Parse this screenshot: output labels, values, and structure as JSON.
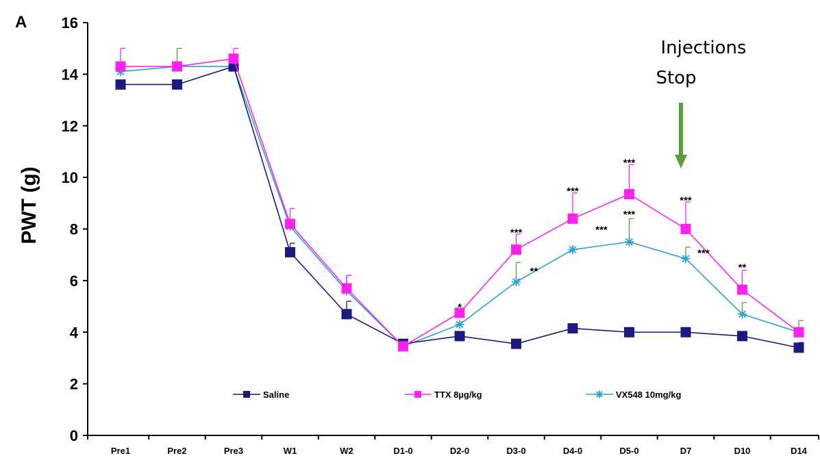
{
  "panel_label": "A",
  "annotation": {
    "text_line1": "Injections",
    "text_line2": "Stop",
    "arrow_color": "#5a9e3a",
    "at_category": "D7"
  },
  "chart_data": {
    "type": "line",
    "title": "",
    "xlabel": "",
    "ylabel": "PWT (g)",
    "ylim": [
      0,
      16
    ],
    "yticks": [
      0,
      2,
      4,
      6,
      8,
      10,
      12,
      14,
      16
    ],
    "grid": false,
    "legend_position": "bottom",
    "categories": [
      "Pre1",
      "Pre2",
      "Pre3",
      "W1",
      "W2",
      "D1-0",
      "D2-0",
      "D3-0",
      "D4-0",
      "D5-0",
      "D7",
      "D10",
      "D14"
    ],
    "series": [
      {
        "name": "Saline",
        "color": "#1a1a80",
        "marker": "square",
        "values": [
          13.6,
          13.6,
          14.3,
          7.1,
          4.7,
          3.55,
          3.85,
          3.55,
          4.15,
          4.0,
          4.0,
          3.85,
          3.4
        ],
        "errors": [
          0,
          0,
          0,
          0.35,
          0.5,
          0,
          0,
          0,
          0,
          0,
          0,
          0.15,
          0.2
        ]
      },
      {
        "name": "TTX 8µg/kg",
        "color": "#ff22ee",
        "marker": "square",
        "values": [
          14.3,
          14.3,
          14.6,
          8.2,
          5.7,
          3.45,
          4.75,
          7.2,
          8.4,
          9.35,
          8.0,
          5.65,
          4.0
        ],
        "errors": [
          0.7,
          0,
          0.4,
          0.6,
          0.5,
          0,
          0.15,
          0.6,
          1.0,
          1.15,
          1.05,
          0.75,
          0.1
        ]
      },
      {
        "name": "VX548 10mg/kg",
        "color": "#2aa3cc",
        "marker": "asterisk",
        "values": [
          14.1,
          14.3,
          14.3,
          8.1,
          5.6,
          3.45,
          4.3,
          5.95,
          7.2,
          7.5,
          6.85,
          4.7,
          4.0
        ],
        "errors": [
          0,
          0.7,
          0,
          0,
          0.6,
          0,
          0,
          0.75,
          0,
          0.9,
          0.45,
          0.45,
          0.45
        ],
        "error_color": "#5a9e3a"
      }
    ],
    "significance": [
      {
        "category": "D2-0",
        "value": 5.05,
        "text": "*"
      },
      {
        "category": "D3-0",
        "value": 7.95,
        "text": "***"
      },
      {
        "category": "D3-0",
        "value": 6.45,
        "text": "**",
        "dx": 26
      },
      {
        "category": "D4-0",
        "value": 9.55,
        "text": "***"
      },
      {
        "category": "D4-0",
        "value": 8.05,
        "text": "***",
        "dx": 42
      },
      {
        "category": "D5-0",
        "value": 10.65,
        "text": "***"
      },
      {
        "category": "D5-0",
        "value": 8.65,
        "text": "***"
      },
      {
        "category": "D7",
        "value": 9.2,
        "text": "***"
      },
      {
        "category": "D7",
        "value": 7.15,
        "text": "***",
        "dx": 26
      },
      {
        "category": "D10",
        "value": 6.6,
        "text": "**"
      }
    ]
  }
}
